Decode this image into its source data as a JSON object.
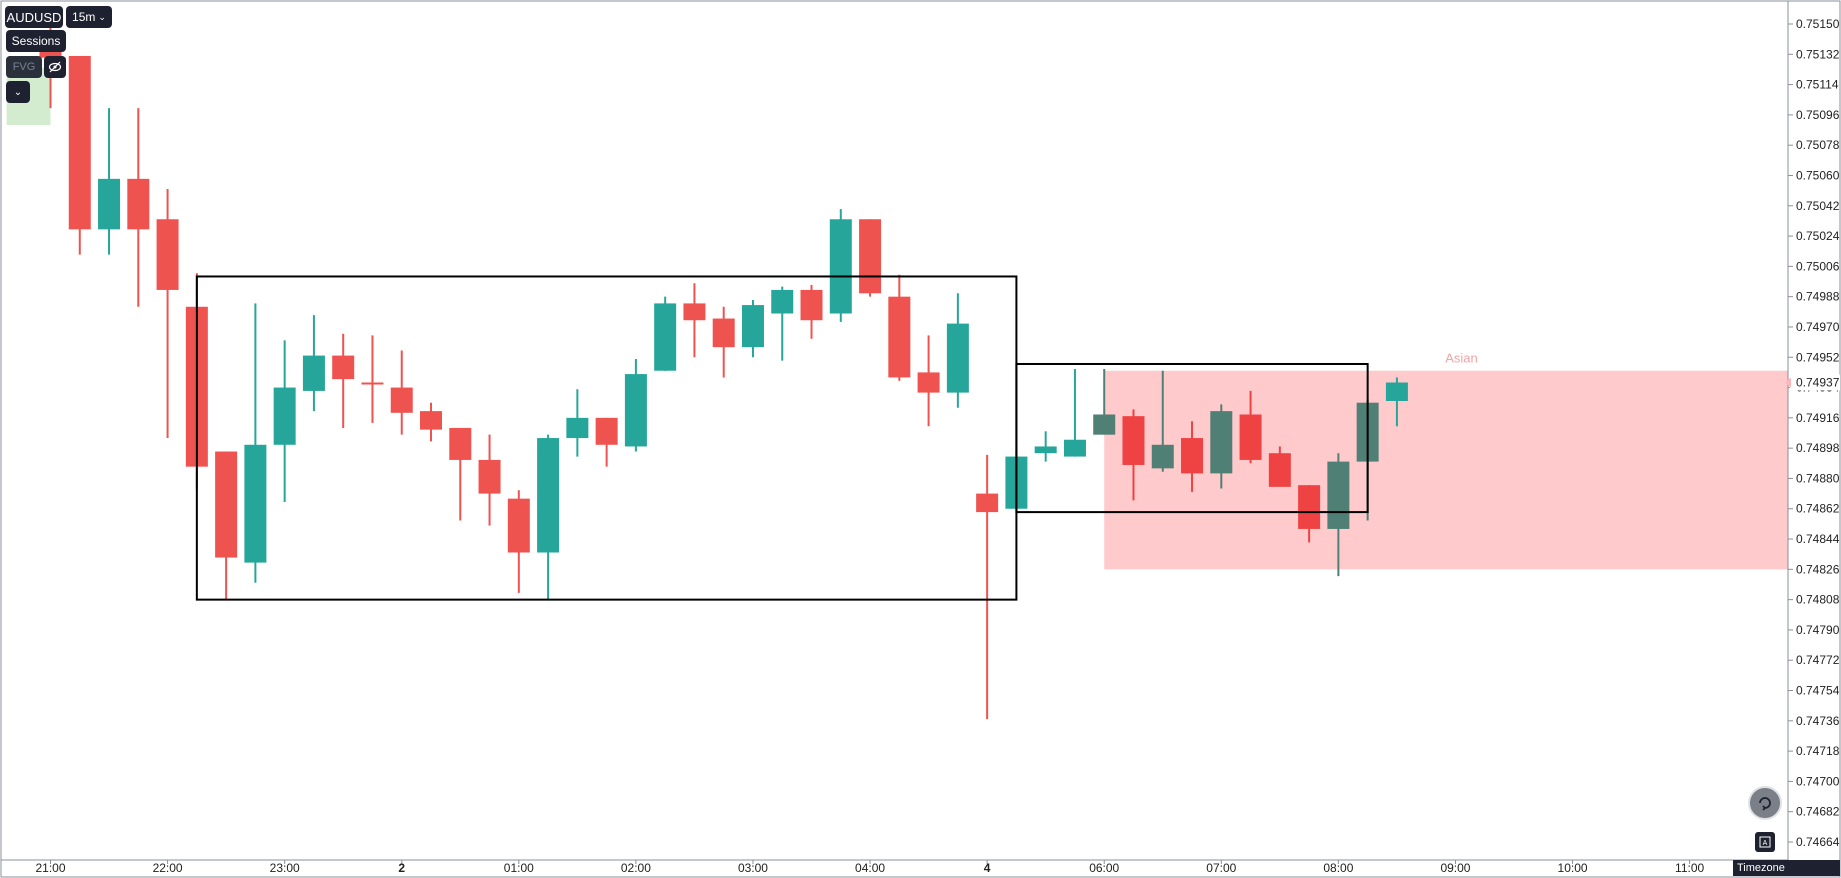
{
  "toolbar": {
    "symbol": "AUDUSD",
    "interval": "15m",
    "sessions_label": "Sessions",
    "fvg_label": "FVG",
    "eye_icon": "eye-off-icon",
    "collapse_icon": "chevron-down-icon",
    "timezone_label": "Timezone",
    "reset_icon": "reset-icon",
    "autoscale_icon": "autoscale-icon"
  },
  "chart_data": {
    "type": "candlestick",
    "symbol": "AUDUSD",
    "interval": "15m",
    "ylim": [
      0.7465,
      0.75165
    ],
    "y_ticks": [
      "0.75150",
      "0.75132",
      "0.75114",
      "0.75096",
      "0.75078",
      "0.75060",
      "0.75042",
      "0.75024",
      "0.75006",
      "0.74988",
      "0.74970",
      "0.74952",
      "0.74934",
      "0.74916",
      "0.74898",
      "0.74880",
      "0.74862",
      "0.74844",
      "0.74826",
      "0.74808",
      "0.74790",
      "0.74772",
      "0.74754",
      "0.74736",
      "0.74718",
      "0.74700",
      "0.74682",
      "0.74664"
    ],
    "x_ticks": [
      {
        "label": "21:00",
        "slot": 0
      },
      {
        "label": "22:00",
        "slot": 4
      },
      {
        "label": "23:00",
        "slot": 8
      },
      {
        "label": "2",
        "slot": 12
      },
      {
        "label": "01:00",
        "slot": 16
      },
      {
        "label": "02:00",
        "slot": 20
      },
      {
        "label": "03:00",
        "slot": 24
      },
      {
        "label": "04:00",
        "slot": 28
      },
      {
        "label": "4",
        "slot": 32
      },
      {
        "label": "06:00",
        "slot": 36
      },
      {
        "label": "07:00",
        "slot": 40
      },
      {
        "label": "08:00",
        "slot": 44
      },
      {
        "label": "09:00",
        "slot": 48
      },
      {
        "label": "10:00",
        "slot": 52
      },
      {
        "label": "11:00",
        "slot": 56
      }
    ],
    "last_price": "0.74937",
    "last_price_value": 0.74937,
    "up_color": "#26a69a",
    "down_color": "#ef5350",
    "session_up_color": "#4f7f75",
    "session_down_color": "#ef4343",
    "candles": [
      {
        "slot": 0,
        "o": 0.7514,
        "h": 0.7515,
        "l": 0.751,
        "c": 0.7513
      },
      {
        "slot": 1,
        "o": 0.75131,
        "h": 0.75131,
        "l": 0.75013,
        "c": 0.75028
      },
      {
        "slot": 2,
        "o": 0.75028,
        "h": 0.751,
        "l": 0.75013,
        "c": 0.75058
      },
      {
        "slot": 3,
        "o": 0.75058,
        "h": 0.751,
        "l": 0.74982,
        "c": 0.75028
      },
      {
        "slot": 4,
        "o": 0.75034,
        "h": 0.75052,
        "l": 0.74904,
        "c": 0.74992
      },
      {
        "slot": 5,
        "o": 0.74982,
        "h": 0.75002,
        "l": 0.74873,
        "c": 0.74887
      },
      {
        "slot": 6,
        "o": 0.74896,
        "h": 0.74896,
        "l": 0.74808,
        "c": 0.74833
      },
      {
        "slot": 7,
        "o": 0.7483,
        "h": 0.74984,
        "l": 0.74818,
        "c": 0.749
      },
      {
        "slot": 8,
        "o": 0.749,
        "h": 0.74962,
        "l": 0.74866,
        "c": 0.74934
      },
      {
        "slot": 9,
        "o": 0.74932,
        "h": 0.74977,
        "l": 0.7492,
        "c": 0.74953
      },
      {
        "slot": 10,
        "o": 0.74953,
        "h": 0.74966,
        "l": 0.7491,
        "c": 0.74939
      },
      {
        "slot": 11,
        "o": 0.74937,
        "h": 0.74965,
        "l": 0.74913,
        "c": 0.74936
      },
      {
        "slot": 12,
        "o": 0.74934,
        "h": 0.74956,
        "l": 0.74906,
        "c": 0.74919
      },
      {
        "slot": 13,
        "o": 0.7492,
        "h": 0.74925,
        "l": 0.74902,
        "c": 0.74909
      },
      {
        "slot": 14,
        "o": 0.7491,
        "h": 0.7491,
        "l": 0.74855,
        "c": 0.74891
      },
      {
        "slot": 15,
        "o": 0.74891,
        "h": 0.74906,
        "l": 0.74852,
        "c": 0.74871
      },
      {
        "slot": 16,
        "o": 0.74868,
        "h": 0.74873,
        "l": 0.74812,
        "c": 0.74836
      },
      {
        "slot": 17,
        "o": 0.74836,
        "h": 0.74906,
        "l": 0.74808,
        "c": 0.74904
      },
      {
        "slot": 18,
        "o": 0.74904,
        "h": 0.74933,
        "l": 0.74893,
        "c": 0.74916
      },
      {
        "slot": 19,
        "o": 0.74916,
        "h": 0.74916,
        "l": 0.74887,
        "c": 0.749
      },
      {
        "slot": 20,
        "o": 0.74899,
        "h": 0.74951,
        "l": 0.74896,
        "c": 0.74942
      },
      {
        "slot": 21,
        "o": 0.74944,
        "h": 0.74988,
        "l": 0.74944,
        "c": 0.74984
      },
      {
        "slot": 22,
        "o": 0.74984,
        "h": 0.74996,
        "l": 0.74952,
        "c": 0.74974
      },
      {
        "slot": 23,
        "o": 0.74975,
        "h": 0.74982,
        "l": 0.7494,
        "c": 0.74958
      },
      {
        "slot": 24,
        "o": 0.74958,
        "h": 0.74986,
        "l": 0.74952,
        "c": 0.74983
      },
      {
        "slot": 25,
        "o": 0.74978,
        "h": 0.74994,
        "l": 0.7495,
        "c": 0.74992
      },
      {
        "slot": 26,
        "o": 0.74992,
        "h": 0.74995,
        "l": 0.74963,
        "c": 0.74974
      },
      {
        "slot": 27,
        "o": 0.74978,
        "h": 0.7504,
        "l": 0.74973,
        "c": 0.75034
      },
      {
        "slot": 28,
        "o": 0.75034,
        "h": 0.75034,
        "l": 0.74988,
        "c": 0.7499
      },
      {
        "slot": 29,
        "o": 0.74988,
        "h": 0.75001,
        "l": 0.74938,
        "c": 0.7494
      },
      {
        "slot": 30,
        "o": 0.74943,
        "h": 0.74965,
        "l": 0.74911,
        "c": 0.74931
      },
      {
        "slot": 31,
        "o": 0.74931,
        "h": 0.7499,
        "l": 0.74922,
        "c": 0.74972
      },
      {
        "slot": 32,
        "o": 0.74871,
        "h": 0.74894,
        "l": 0.74737,
        "c": 0.7486
      },
      {
        "slot": 33,
        "o": 0.74862,
        "h": 0.74897,
        "l": 0.74862,
        "c": 0.74893
      },
      {
        "slot": 34,
        "o": 0.74895,
        "h": 0.74908,
        "l": 0.7489,
        "c": 0.74899
      },
      {
        "slot": 35,
        "o": 0.74893,
        "h": 0.74945,
        "l": 0.74893,
        "c": 0.74903
      },
      {
        "slot": 36,
        "o": 0.74906,
        "h": 0.74945,
        "l": 0.74906,
        "c": 0.74918,
        "session": true
      },
      {
        "slot": 37,
        "o": 0.74917,
        "h": 0.74921,
        "l": 0.74867,
        "c": 0.74888,
        "session": true
      },
      {
        "slot": 38,
        "o": 0.74886,
        "h": 0.74944,
        "l": 0.74884,
        "c": 0.749,
        "session": true
      },
      {
        "slot": 39,
        "o": 0.74904,
        "h": 0.74914,
        "l": 0.74872,
        "c": 0.74883,
        "session": true
      },
      {
        "slot": 40,
        "o": 0.74883,
        "h": 0.74924,
        "l": 0.74874,
        "c": 0.7492,
        "session": true
      },
      {
        "slot": 41,
        "o": 0.74918,
        "h": 0.74932,
        "l": 0.74889,
        "c": 0.74891,
        "session": true
      },
      {
        "slot": 42,
        "o": 0.74895,
        "h": 0.74899,
        "l": 0.74876,
        "c": 0.74875,
        "session": true
      },
      {
        "slot": 43,
        "o": 0.74876,
        "h": 0.74876,
        "l": 0.74842,
        "c": 0.7485,
        "session": true
      },
      {
        "slot": 44,
        "o": 0.7485,
        "h": 0.74895,
        "l": 0.74822,
        "c": 0.7489,
        "session": true
      },
      {
        "slot": 45,
        "o": 0.7489,
        "h": 0.74927,
        "l": 0.74855,
        "c": 0.74925,
        "session": true
      },
      {
        "slot": 46,
        "o": 0.74926,
        "h": 0.7494,
        "l": 0.74911,
        "c": 0.74937
      }
    ],
    "rectangles": [
      {
        "name": "range-box-1",
        "x0": 5.0,
        "x1": 33.0,
        "y_top": 0.75,
        "y_bottom": 0.74808
      },
      {
        "name": "range-box-2",
        "x0": 33.0,
        "x1": 45.0,
        "y_top": 0.74948,
        "y_bottom": 0.7486
      }
    ],
    "sessions": [
      {
        "name": "Asian",
        "x0": 36.0,
        "x1": 60.0,
        "y_top": 0.74944,
        "y_bottom": 0.74826,
        "color": "#ffb6b9",
        "label_slot": 48
      }
    ],
    "fvg_zone": {
      "x0": -1.5,
      "x1": 0.0,
      "y_top": 0.75124,
      "y_bottom": 0.7509,
      "color": "#d3ecd0"
    }
  }
}
